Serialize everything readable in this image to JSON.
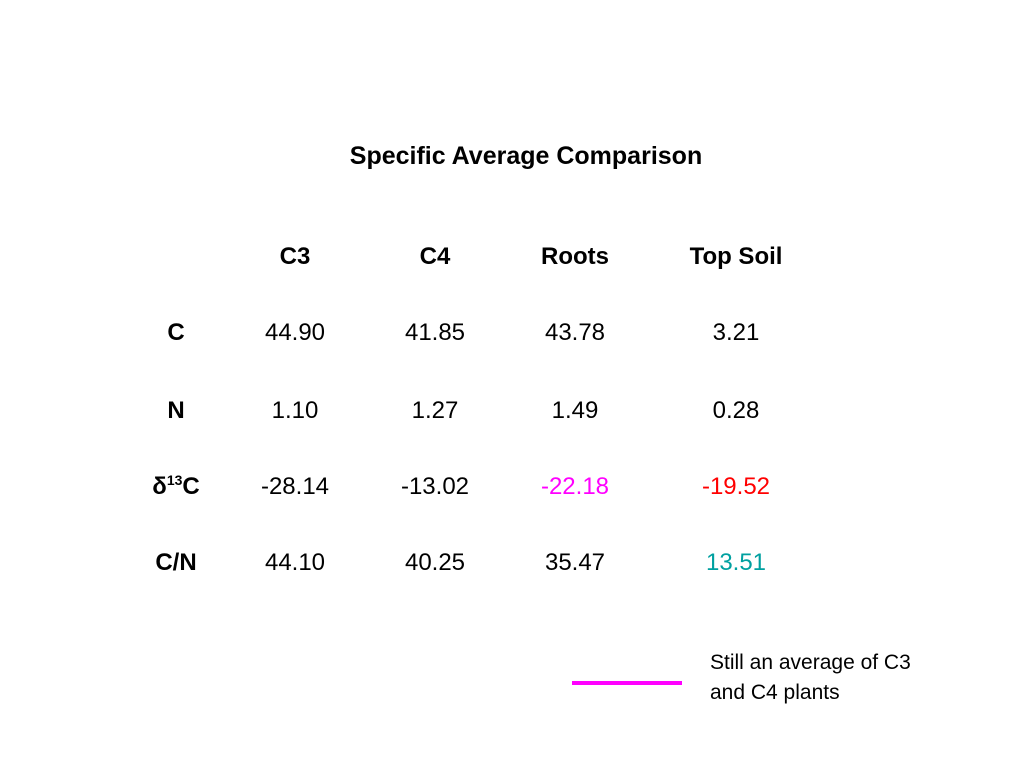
{
  "title": "Specific Average Comparison",
  "table": {
    "columns": [
      "C3",
      "C4",
      "Roots",
      "Top Soil"
    ],
    "rows": [
      {
        "label": "C",
        "values": [
          "44.90",
          "41.85",
          "43.78",
          "3.21"
        ]
      },
      {
        "label": "N",
        "values": [
          "1.10",
          "1.27",
          "1.49",
          "0.28"
        ]
      },
      {
        "label_prefix": "δ",
        "label_sup": "13",
        "label_suffix": "C",
        "values": [
          "-28.14",
          "-13.02",
          "-22.18",
          "-19.52"
        ]
      },
      {
        "label": "C/N",
        "values": [
          "44.10",
          "40.25",
          "35.47",
          "13.51"
        ]
      }
    ]
  },
  "highlight_colors": {
    "roots_d13c": "#ff00ff",
    "topsoil_d13c": "#ff0000",
    "topsoil_cn": "#00a0a0",
    "legend_line": "#ff00ff"
  },
  "legend": {
    "note_line1": "Still an average of C3",
    "note_line2": "and C4 plants"
  }
}
